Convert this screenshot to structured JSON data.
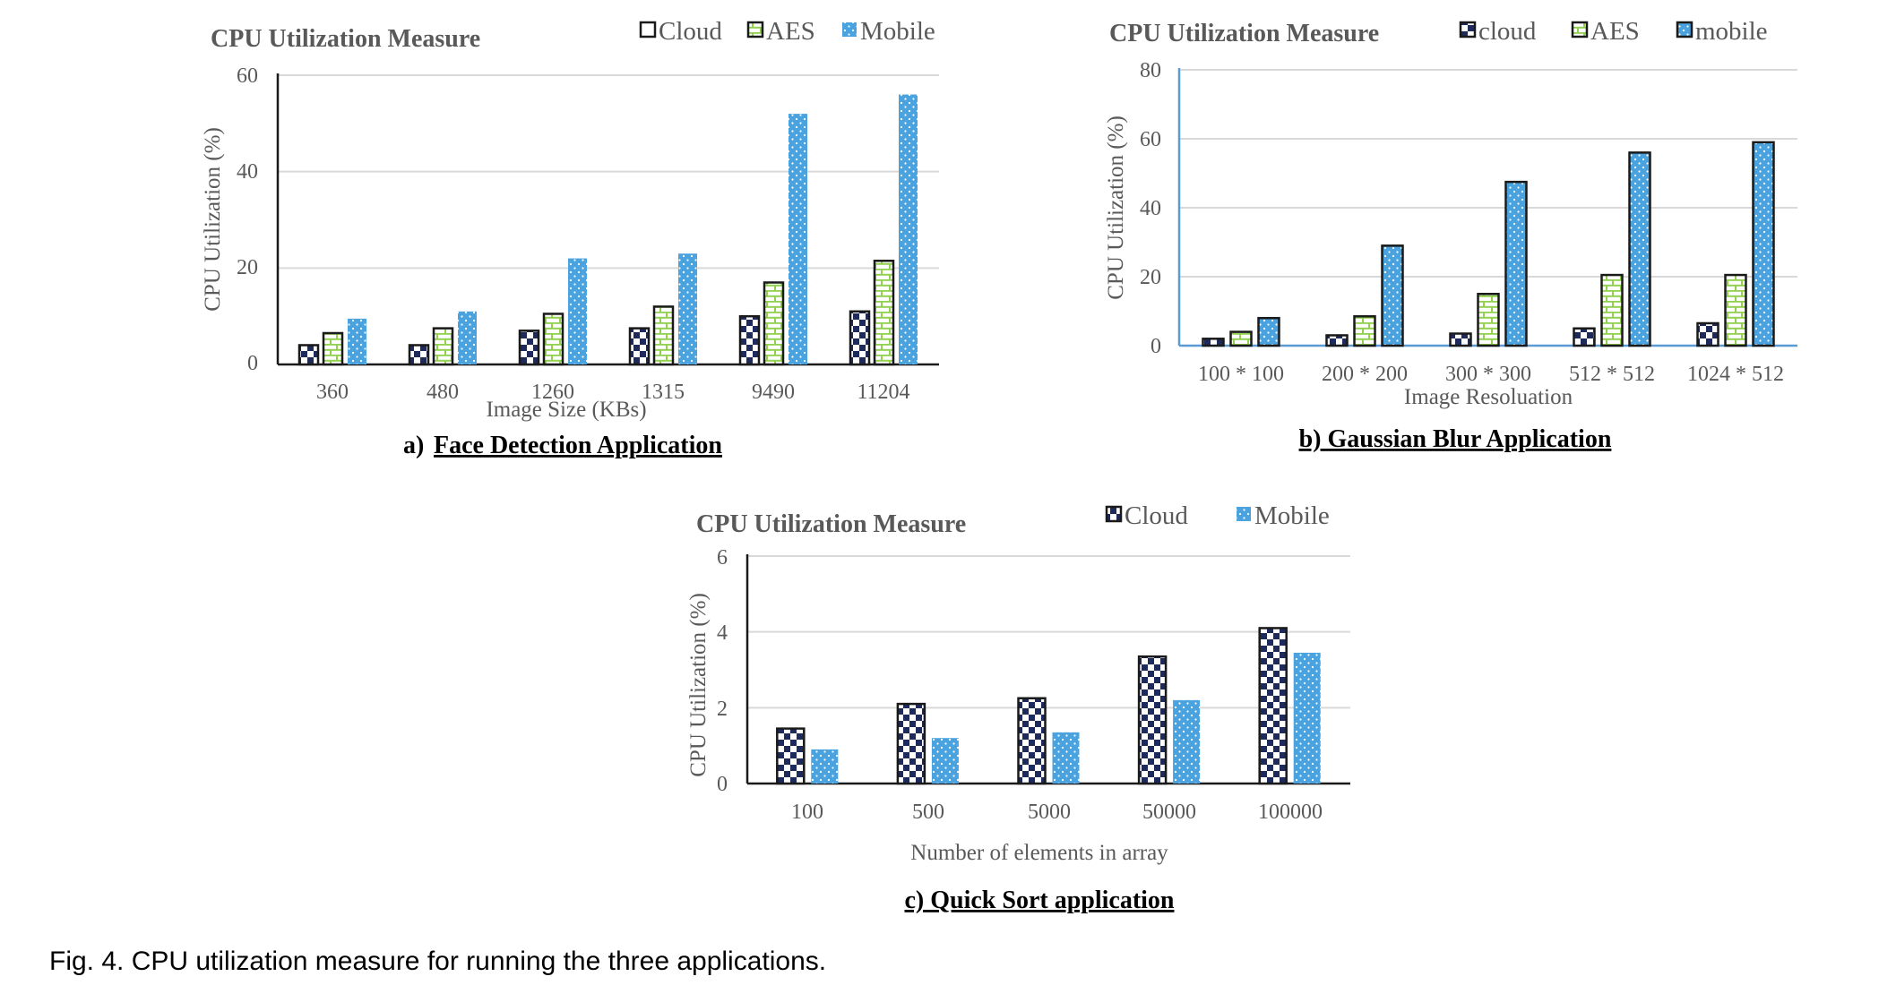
{
  "figure_caption": "Fig. 4. CPU utilization measure for running the three applications.",
  "colors": {
    "cloud_navy": "#1f2a5c",
    "aes_green": "#92d050",
    "mobile_blue": "#4aa3df",
    "grid": "#d9d9d9",
    "text": "#595959"
  },
  "chart_data": [
    {
      "type": "bar",
      "title": "CPU Utilization Measure",
      "caption_prefix": "a) ",
      "caption_main": "Face Detection Application",
      "xlabel": "Image Size (KBs)",
      "ylabel": "CPU Utilization (%)",
      "ylim": [
        0,
        60
      ],
      "yticks": [
        "0",
        "20",
        "40",
        "60"
      ],
      "categories": [
        "360",
        "480",
        "1260",
        "1315",
        "9490",
        "11204"
      ],
      "series": [
        {
          "name": "Cloud",
          "pattern": "checker",
          "values": [
            4,
            4,
            7,
            7.5,
            10,
            11
          ]
        },
        {
          "name": "AES",
          "pattern": "brick",
          "values": [
            6.5,
            7.5,
            10.5,
            12,
            17,
            21.5
          ]
        },
        {
          "name": "Mobile",
          "pattern": "dots",
          "values": [
            9.5,
            11,
            22,
            23,
            52,
            56
          ]
        }
      ],
      "grid": true,
      "legend": "top-right"
    },
    {
      "type": "bar",
      "title": "CPU Utilization Measure",
      "caption_prefix": "",
      "caption_main": "b) Gaussian Blur Application",
      "xlabel": "Image Resoluation",
      "ylabel": "CPU Utilization (%)",
      "ylim": [
        0,
        80
      ],
      "yticks": [
        "0",
        "20",
        "40",
        "60",
        "80"
      ],
      "categories": [
        "100 * 100",
        "200 * 200",
        "300 * 300",
        "512 * 512",
        "1024 * 512"
      ],
      "series": [
        {
          "name": "cloud",
          "pattern": "checker",
          "values": [
            2,
            3,
            3.5,
            5,
            6.5
          ]
        },
        {
          "name": "AES",
          "pattern": "brick",
          "values": [
            4,
            8.5,
            15,
            20.5,
            20.5
          ]
        },
        {
          "name": "mobile",
          "pattern": "dots",
          "values": [
            8,
            29,
            47.5,
            56,
            59
          ]
        }
      ],
      "grid": true,
      "legend": "top-right"
    },
    {
      "type": "bar",
      "title": "CPU Utilization Measure",
      "caption_prefix": "",
      "caption_main": "c) Quick Sort application",
      "xlabel": "Number of elements in array",
      "ylabel": "CPU Utilization (%)",
      "ylim": [
        0,
        6
      ],
      "yticks": [
        "0",
        "2",
        "4",
        "6"
      ],
      "categories": [
        "100",
        "500",
        "5000",
        "50000",
        "100000"
      ],
      "series": [
        {
          "name": "Cloud",
          "pattern": "checker",
          "values": [
            1.45,
            2.1,
            2.25,
            3.35,
            4.1
          ]
        },
        {
          "name": "Mobile",
          "pattern": "dots",
          "values": [
            0.9,
            1.2,
            1.35,
            2.2,
            3.45
          ]
        }
      ],
      "grid": true,
      "legend": "top-right"
    }
  ]
}
